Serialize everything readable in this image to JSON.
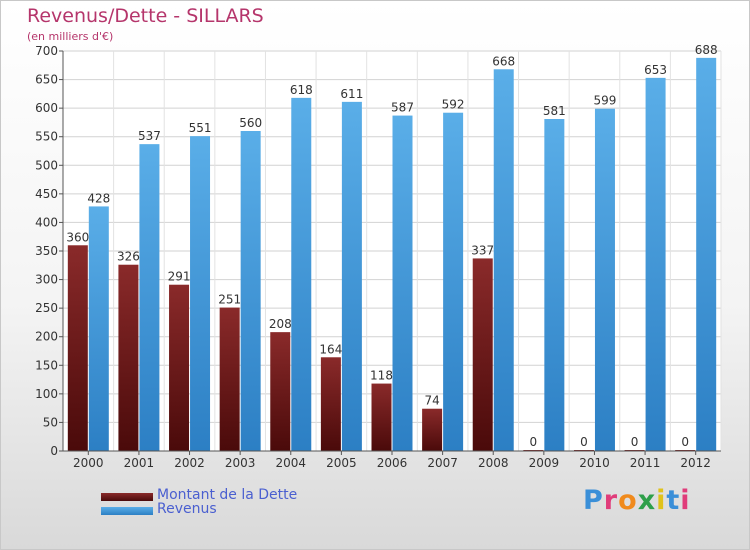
{
  "chart_data": {
    "type": "bar",
    "title": "Revenus/Dette - SILLARS",
    "subtitle": "(en milliers d'€)",
    "categories": [
      "2000",
      "2001",
      "2002",
      "2003",
      "2004",
      "2005",
      "2006",
      "2007",
      "2008",
      "2009",
      "2010",
      "2011",
      "2012"
    ],
    "series": [
      {
        "name": "Montant de la Dette",
        "color": "#7a1a1a",
        "values": [
          360,
          326,
          291,
          251,
          208,
          164,
          118,
          74,
          337,
          0,
          0,
          0,
          0
        ]
      },
      {
        "name": "Revenus",
        "color": "#4da3e6",
        "values": [
          428,
          537,
          551,
          560,
          618,
          611,
          587,
          592,
          668,
          581,
          599,
          653,
          688
        ]
      }
    ],
    "ylim": [
      0,
      700
    ],
    "yticks": [
      0,
      50,
      100,
      150,
      200,
      250,
      300,
      350,
      400,
      450,
      500,
      550,
      600,
      650,
      700
    ],
    "grid": true,
    "legend_position": "bottom-left"
  },
  "legend": {
    "items": [
      {
        "label": "Montant de la Dette",
        "color": "#7a1a1a"
      },
      {
        "label": "Revenus",
        "color": "#4da3e6"
      }
    ]
  },
  "logo": {
    "text": "Proxiti",
    "letter_colors": [
      "#3a8fd8",
      "#e03c7a",
      "#f08a1c",
      "#2e9f4a",
      "#e0c21a",
      "#3a8fd8",
      "#e03c7a"
    ]
  }
}
